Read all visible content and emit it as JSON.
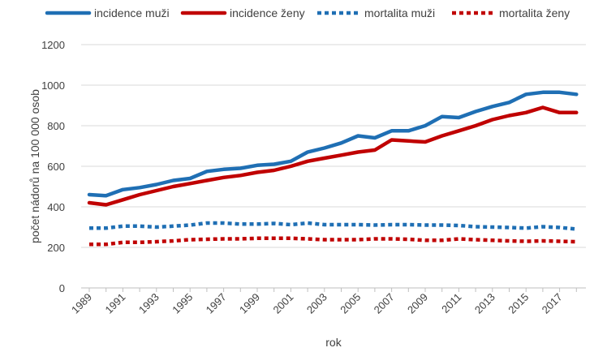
{
  "chart_data": {
    "type": "line",
    "title": "",
    "xlabel": "rok",
    "ylabel": "počet nádorů na 100 000 osob",
    "ylim": [
      0,
      1200
    ],
    "yticks": [
      0,
      200,
      400,
      600,
      800,
      1000,
      1200
    ],
    "grid": true,
    "legend_position": "top",
    "x": [
      1989,
      1990,
      1991,
      1992,
      1993,
      1994,
      1995,
      1996,
      1997,
      1998,
      1999,
      2000,
      2001,
      2002,
      2003,
      2004,
      2005,
      2006,
      2007,
      2008,
      2009,
      2010,
      2011,
      2012,
      2013,
      2014,
      2015,
      2016,
      2017,
      2018
    ],
    "xtick_labels": [
      "1989",
      "1991",
      "1993",
      "1995",
      "1997",
      "1999",
      "2001",
      "2003",
      "2005",
      "2007",
      "2009",
      "2011",
      "2013",
      "2015",
      "2017"
    ],
    "series": [
      {
        "name": "incidence muži",
        "color": "#1f6fb4",
        "dash": "solid",
        "values": [
          460,
          455,
          485,
          495,
          510,
          530,
          540,
          575,
          585,
          590,
          605,
          610,
          625,
          670,
          690,
          715,
          750,
          740,
          775,
          775,
          800,
          845,
          840,
          870,
          895,
          915,
          955,
          965,
          965,
          955
        ]
      },
      {
        "name": "incidence ženy",
        "color": "#c00000",
        "dash": "solid",
        "values": [
          420,
          410,
          435,
          460,
          480,
          500,
          515,
          530,
          545,
          555,
          570,
          580,
          600,
          625,
          640,
          655,
          670,
          680,
          730,
          725,
          720,
          750,
          775,
          800,
          830,
          850,
          865,
          890,
          865,
          865
        ]
      },
      {
        "name": "mortalita muži",
        "color": "#1f6fb4",
        "dash": "dotted",
        "values": [
          295,
          295,
          305,
          305,
          300,
          305,
          310,
          320,
          320,
          315,
          315,
          318,
          312,
          320,
          312,
          312,
          312,
          310,
          312,
          312,
          310,
          310,
          308,
          302,
          300,
          298,
          295,
          302,
          298,
          290
        ]
      },
      {
        "name": "mortalita ženy",
        "color": "#c00000",
        "dash": "dotted",
        "values": [
          215,
          215,
          225,
          225,
          228,
          232,
          238,
          240,
          242,
          242,
          245,
          245,
          245,
          242,
          238,
          238,
          238,
          242,
          242,
          240,
          235,
          235,
          242,
          238,
          235,
          232,
          230,
          232,
          230,
          228
        ]
      }
    ]
  }
}
